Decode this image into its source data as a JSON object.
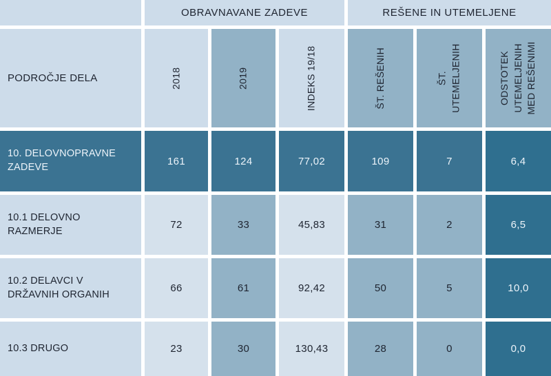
{
  "table": {
    "group_headers": {
      "obravnavane": "OBRAVNAVANE ZADEVE",
      "resene": "REŠENE IN UTEMELJENE"
    },
    "corner_label": "PODROČJE DELA",
    "column_headers": {
      "y2018": "2018",
      "y2019": "2019",
      "indeks": "INDEKS 19/18",
      "st_resenih": "ŠT. REŠENIH",
      "st_utemeljenih": "ŠT.\nUTEMELJENIH",
      "odstotek": "ODSTOTEK\nUTEMELJENIH\nMED REŠENIMI"
    },
    "rows": [
      {
        "label": "10. DELOVNOPRAVNE ZADEVE",
        "values": [
          "161",
          "124",
          "77,02",
          "109",
          "7",
          "6,4"
        ],
        "highlight": true
      },
      {
        "label": "10.1 DELOVNO RAZMERJE",
        "values": [
          "72",
          "33",
          "45,83",
          "31",
          "2",
          "6,5"
        ],
        "highlight": false
      },
      {
        "label": "10.2 DELAVCI V DRŽAVNIH ORGANIH",
        "values": [
          "66",
          "61",
          "92,42",
          "50",
          "5",
          "10,0"
        ],
        "highlight": false
      },
      {
        "label": "10.3 DRUGO",
        "values": [
          "23",
          "30",
          "130,43",
          "28",
          "0",
          "0,0"
        ],
        "highlight": false
      }
    ]
  },
  "colors": {
    "cell_light": "#cddcea",
    "cell_lighter": "#d5e1ec",
    "cell_medium": "#92b2c6",
    "cell_dark_highlight_row": "#3b7392",
    "cell_dark_accent_column": "#2f6f8f",
    "text_dark": "#1e2430",
    "text_light": "#ecf3f9",
    "grid_gap": "#ffffff"
  }
}
